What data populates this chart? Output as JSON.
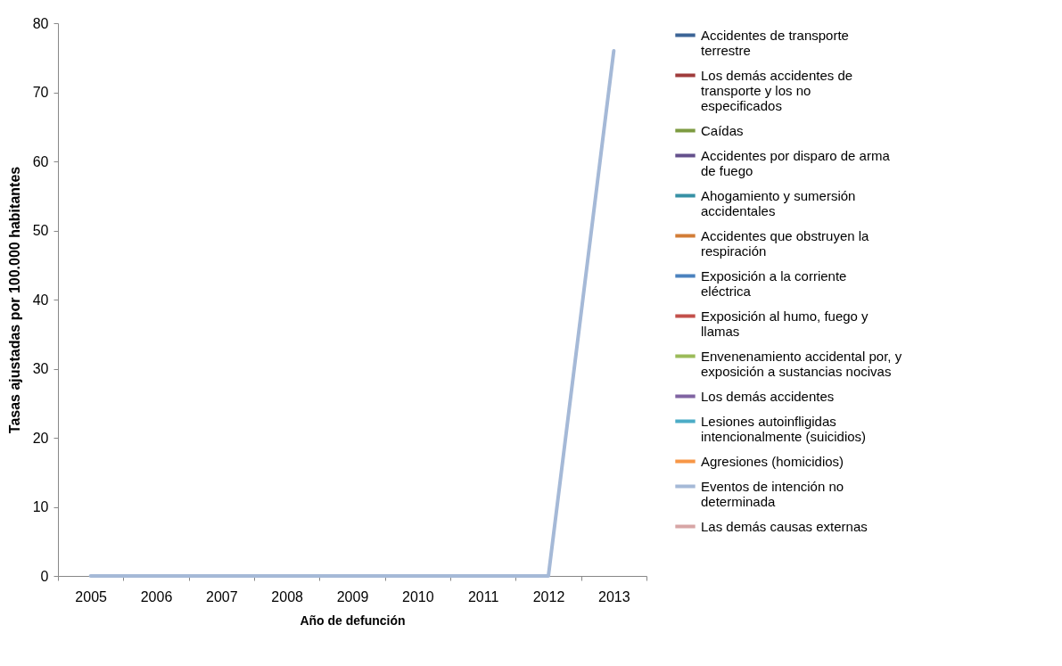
{
  "chart_data": {
    "type": "line",
    "xlabel": "Año de defunción",
    "ylabel": "Tasas ajustadas por 100.000 habitantes",
    "categories": [
      "2005",
      "2006",
      "2007",
      "2008",
      "2009",
      "2010",
      "2011",
      "2012",
      "2013"
    ],
    "ylim": [
      0,
      80
    ],
    "yticks": [
      0,
      10,
      20,
      30,
      40,
      50,
      60,
      70,
      80
    ],
    "grid": false,
    "legend": "right",
    "marker": "none",
    "line_style": "solid",
    "series": [
      {
        "name": "Accidentes de transporte terrestre",
        "color": "#3c6496",
        "values": [
          null,
          null,
          null,
          null,
          null,
          null,
          null,
          null,
          null
        ]
      },
      {
        "name": "Los demás accidentes de transporte y los no especificados",
        "color": "#a03c3c",
        "values": [
          null,
          null,
          null,
          null,
          null,
          null,
          null,
          null,
          null
        ]
      },
      {
        "name": "Caídas",
        "color": "#7d9b41",
        "values": [
          null,
          null,
          null,
          null,
          null,
          null,
          null,
          null,
          null
        ]
      },
      {
        "name": "Accidentes por disparo de arma de fuego",
        "color": "#64508c",
        "values": [
          null,
          null,
          null,
          null,
          null,
          null,
          null,
          null,
          null
        ]
      },
      {
        "name": "Ahogamiento y sumersión accidentales",
        "color": "#3791a5",
        "values": [
          null,
          null,
          null,
          null,
          null,
          null,
          null,
          null,
          null
        ]
      },
      {
        "name": "Accidentes que obstruyen la respiración",
        "color": "#d27d37",
        "values": [
          null,
          null,
          null,
          null,
          null,
          null,
          null,
          null,
          null
        ]
      },
      {
        "name": "Exposición a la corriente eléctrica",
        "color": "#4b82be",
        "values": [
          null,
          null,
          null,
          null,
          null,
          null,
          null,
          null,
          null
        ]
      },
      {
        "name": "Exposición al humo, fuego y llamas",
        "color": "#c3504b",
        "values": [
          null,
          null,
          null,
          null,
          null,
          null,
          null,
          null,
          null
        ]
      },
      {
        "name": "Envenenamiento accidental por, y exposición a sustancias nocivas",
        "color": "#9bbb59",
        "values": [
          null,
          null,
          null,
          null,
          null,
          null,
          null,
          null,
          null
        ]
      },
      {
        "name": "Los demás accidentes",
        "color": "#8064a2",
        "values": [
          null,
          null,
          null,
          null,
          null,
          null,
          null,
          null,
          null
        ]
      },
      {
        "name": "Lesiones autoinfligidas intencionalmente (suicidios)",
        "color": "#4bacc6",
        "values": [
          null,
          null,
          null,
          null,
          null,
          null,
          null,
          null,
          null
        ]
      },
      {
        "name": "Agresiones (homicidios)",
        "color": "#f79646",
        "values": [
          null,
          null,
          null,
          null,
          null,
          null,
          null,
          null,
          null
        ]
      },
      {
        "name": "Eventos de intención no determinada",
        "color": "#a5b9d7",
        "values": [
          0,
          0,
          0,
          0,
          0,
          0,
          0,
          0,
          76
        ]
      },
      {
        "name": "Las demás causas externas",
        "color": "#d7a5a5",
        "values": [
          null,
          null,
          null,
          null,
          null,
          null,
          null,
          null,
          null
        ]
      }
    ]
  }
}
